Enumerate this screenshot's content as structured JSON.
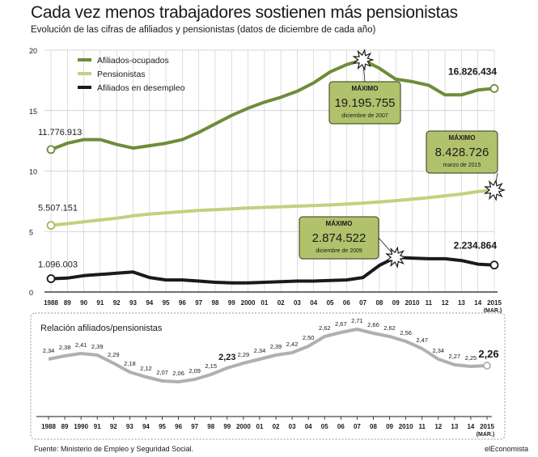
{
  "header": {
    "title": "Cada vez menos trabajadores sostienen más pensionistas",
    "subtitle": "Evolución de las cifras de afiliados y pensionistas (datos de diciembre de cada año)"
  },
  "footer": {
    "source": "Fuente: Ministerio de Empleo y Seguridad Social.",
    "brand": "elEconomista"
  },
  "colors": {
    "afiliados": "#6f8c3a",
    "pensionistas": "#c3d07f",
    "desempleo": "#1a1a1a",
    "grid": "#c8c8c8",
    "ratio_line": "#b0b0b0",
    "callout_fill": "#b2c26c",
    "callout_border": "#2c3a16"
  },
  "chart_data": [
    {
      "type": "line",
      "title": "",
      "x": [
        "1988",
        "89",
        "90",
        "91",
        "92",
        "93",
        "94",
        "95",
        "96",
        "97",
        "98",
        "99",
        "2000",
        "01",
        "02",
        "03",
        "04",
        "05",
        "06",
        "07",
        "08",
        "09",
        "2010",
        "11",
        "12",
        "13",
        "14",
        "2015"
      ],
      "x_extra_label": "(MAR.)",
      "ylim": [
        0,
        20
      ],
      "yticks": [
        "0",
        "5",
        "10",
        "15",
        "20"
      ],
      "grid": true,
      "legend_position": "top-left",
      "series": [
        {
          "name": "Afiliados-ocupados",
          "values": [
            11.78,
            12.3,
            12.6,
            12.6,
            12.2,
            11.9,
            12.1,
            12.3,
            12.6,
            13.2,
            13.9,
            14.6,
            15.2,
            15.7,
            16.1,
            16.6,
            17.3,
            18.2,
            18.8,
            19.2,
            18.5,
            17.6,
            17.4,
            17.1,
            16.3,
            16.3,
            16.7,
            16.83
          ],
          "labels": [
            {
              "index": 0,
              "text": "11.776.913"
            },
            {
              "index": 27,
              "text": "16.826.434"
            }
          ]
        },
        {
          "name": "Pensionistas",
          "values": [
            5.51,
            5.65,
            5.8,
            5.95,
            6.1,
            6.3,
            6.45,
            6.55,
            6.65,
            6.75,
            6.8,
            6.87,
            6.95,
            7.0,
            7.05,
            7.1,
            7.15,
            7.2,
            7.28,
            7.35,
            7.45,
            7.55,
            7.68,
            7.8,
            7.95,
            8.1,
            8.3,
            8.43
          ],
          "labels": [
            {
              "index": 0,
              "text": "5.507.151"
            }
          ]
        },
        {
          "name": "Afiliados en desempleo",
          "values": [
            1.1,
            1.15,
            1.35,
            1.45,
            1.55,
            1.65,
            1.2,
            1.0,
            1.0,
            0.9,
            0.8,
            0.75,
            0.75,
            0.8,
            0.85,
            0.9,
            0.9,
            0.95,
            1.0,
            1.2,
            2.2,
            2.87,
            2.8,
            2.75,
            2.75,
            2.6,
            2.3,
            2.23
          ],
          "labels": [
            {
              "index": 0,
              "text": "1.096.003"
            },
            {
              "index": 27,
              "text": "2.234.864"
            }
          ]
        }
      ],
      "annotations": [
        {
          "series": 0,
          "index": 19,
          "header": "MÁXIMO",
          "value": "19.195.755",
          "date": "diciembre de 2007"
        },
        {
          "series": 1,
          "index": 27,
          "header": "MÁXIMO",
          "value": "8.428.726",
          "date": "marzo de 2015"
        },
        {
          "series": 2,
          "index": 21,
          "header": "MÁXIMO",
          "value": "2.874.522",
          "date": "diciembre de 2009"
        }
      ]
    },
    {
      "type": "line",
      "title": "Relación afiliados/pensionistas",
      "x": [
        "1988",
        "89",
        "1990",
        "91",
        "92",
        "93",
        "94",
        "95",
        "96",
        "97",
        "98",
        "99",
        "2000",
        "01",
        "02",
        "03",
        "04",
        "05",
        "06",
        "07",
        "08",
        "09",
        "2010",
        "11",
        "12",
        "13",
        "14",
        "2015"
      ],
      "x_extra_label": "(MAR.)",
      "series": [
        {
          "name": "",
          "values": [
            2.34,
            2.38,
            2.41,
            2.39,
            2.29,
            2.18,
            2.12,
            2.07,
            2.06,
            2.09,
            2.15,
            2.23,
            2.29,
            2.34,
            2.39,
            2.42,
            2.5,
            2.62,
            2.67,
            2.71,
            2.66,
            2.62,
            2.56,
            2.47,
            2.34,
            2.27,
            2.25,
            2.26
          ],
          "labels": [
            "2,34",
            "2,38",
            "2,41",
            "2,39",
            "2,29",
            "2,18",
            "2,12",
            "2,07",
            "2,06",
            "2,09",
            "2,15",
            "2,23",
            "2,29",
            "2,34",
            "2,39",
            "2,42",
            "2,50",
            "2,62",
            "2,67",
            "2,71",
            "2,66",
            "2,62",
            "2,56",
            "2,47",
            "2,34",
            "2,27",
            "2,25",
            "2,26"
          ],
          "bold_indices": [
            11,
            27
          ]
        }
      ]
    }
  ]
}
